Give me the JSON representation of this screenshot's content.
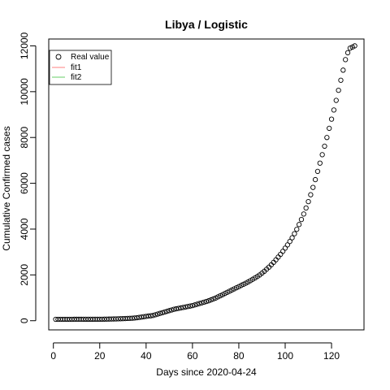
{
  "chart_data": {
    "type": "scatter",
    "title": "Libya / Logistic",
    "xlabel": "Days since 2020-04-24",
    "ylabel": "Cumulative Confirmed cases",
    "xlim": [
      -2,
      134
    ],
    "ylim": [
      -400,
      12300
    ],
    "x_ticks": [
      0,
      20,
      40,
      60,
      80,
      100,
      120
    ],
    "y_ticks": [
      0,
      2000,
      4000,
      6000,
      8000,
      10000,
      12000
    ],
    "legend": {
      "position": "top-left",
      "items": [
        {
          "label": "Real value",
          "symbol": "circle",
          "color": "#000000"
        },
        {
          "label": "fit1",
          "symbol": "line",
          "color": "#ff8080"
        },
        {
          "label": "fit2",
          "symbol": "line",
          "color": "#66cc66"
        }
      ]
    },
    "series": [
      {
        "name": "Real value",
        "x": [
          1,
          2,
          3,
          4,
          5,
          6,
          7,
          8,
          9,
          10,
          11,
          12,
          13,
          14,
          15,
          16,
          17,
          18,
          19,
          20,
          21,
          22,
          23,
          24,
          25,
          26,
          27,
          28,
          29,
          30,
          31,
          32,
          33,
          34,
          35,
          36,
          37,
          38,
          39,
          40,
          41,
          42,
          43,
          44,
          45,
          46,
          47,
          48,
          49,
          50,
          51,
          52,
          53,
          54,
          55,
          56,
          57,
          58,
          59,
          60,
          61,
          62,
          63,
          64,
          65,
          66,
          67,
          68,
          69,
          70,
          71,
          72,
          73,
          74,
          75,
          76,
          77,
          78,
          79,
          80,
          81,
          82,
          83,
          84,
          85,
          86,
          87,
          88,
          89,
          90,
          91,
          92,
          93,
          94,
          95,
          96,
          97,
          98,
          99,
          100,
          101,
          102,
          103,
          104,
          105,
          106,
          107,
          108,
          109,
          110,
          111,
          112,
          113,
          114,
          115,
          116,
          117,
          118,
          119,
          120,
          121,
          122,
          123,
          124,
          125,
          126,
          127,
          128,
          129,
          130
        ],
        "y": [
          61,
          61,
          61,
          61,
          61,
          62,
          62,
          62,
          63,
          63,
          63,
          63,
          64,
          64,
          64,
          64,
          64,
          65,
          65,
          65,
          66,
          68,
          70,
          72,
          75,
          77,
          79,
          83,
          86,
          90,
          95,
          100,
          105,
          110,
          118,
          130,
          145,
          160,
          175,
          190,
          205,
          215,
          230,
          260,
          290,
          320,
          350,
          380,
          410,
          440,
          470,
          500,
          520,
          540,
          560,
          580,
          600,
          620,
          640,
          660,
          690,
          720,
          750,
          780,
          810,
          840,
          870,
          910,
          950,
          990,
          1040,
          1090,
          1140,
          1190,
          1240,
          1290,
          1340,
          1390,
          1440,
          1490,
          1540,
          1590,
          1640,
          1690,
          1750,
          1810,
          1870,
          1930,
          2000,
          2080,
          2160,
          2250,
          2340,
          2440,
          2550,
          2660,
          2780,
          2900,
          3030,
          3170,
          3310,
          3460,
          3620,
          3800,
          3990,
          4200,
          4420,
          4660,
          4920,
          5200,
          5500,
          5820,
          6160,
          6520,
          6880,
          7250,
          7620,
          8000,
          8400,
          8800,
          9200,
          9620,
          10060,
          10500,
          10940,
          11400,
          11700,
          11900,
          11950,
          12000
        ]
      }
    ]
  }
}
